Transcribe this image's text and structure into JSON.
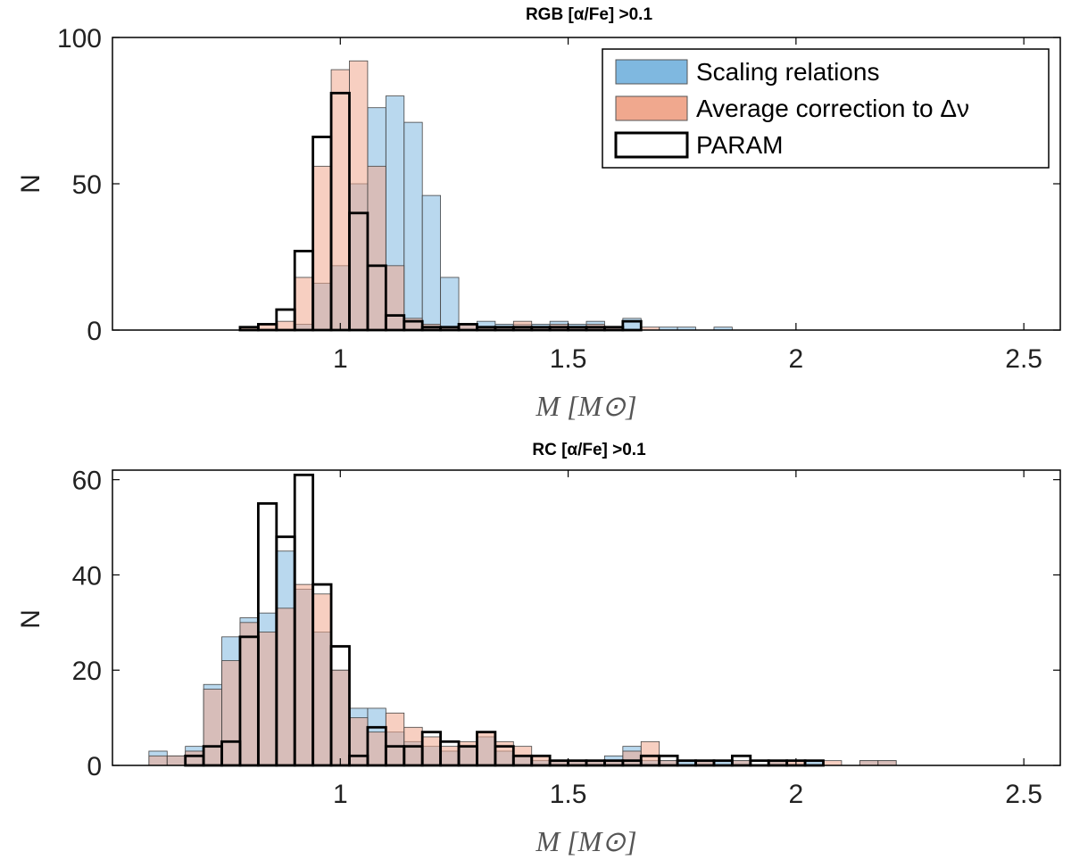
{
  "chart_data": [
    {
      "type": "bar",
      "title": "RGB [α/Fe] >0.1",
      "xlabel": "M  [M⊙]",
      "ylabel": "N",
      "xlim": [
        0.5,
        2.58
      ],
      "ylim": [
        0,
        100
      ],
      "xticks": [
        "1",
        "1.5",
        "2",
        "2.5"
      ],
      "yticks": [
        "0",
        "50",
        "100"
      ],
      "bin_width": 0.05,
      "legend": {
        "position": "top-right",
        "entries": [
          "Scaling relations",
          "Average correction to Δν",
          "PARAM"
        ]
      },
      "series": [
        {
          "name": "Scaling relations",
          "color": "#7fb8e0",
          "edges": [
            0.78,
            0.82,
            0.86,
            0.9,
            0.94,
            0.98,
            1.02,
            1.06,
            1.1,
            1.14,
            1.18,
            1.22,
            1.26,
            1.3,
            1.34,
            1.38,
            1.42,
            1.46,
            1.5,
            1.54,
            1.58,
            1.62,
            1.66,
            1.7,
            1.74,
            1.78,
            1.82,
            1.86
          ],
          "values": [
            0,
            0,
            0,
            2,
            16,
            22,
            50,
            76,
            80,
            71,
            46,
            18,
            2,
            3,
            2,
            2,
            2,
            3,
            2,
            3,
            1,
            4,
            0,
            1,
            1,
            0,
            1
          ]
        },
        {
          "name": "Average correction to Δν",
          "color": "#f0a88e",
          "edges": [
            0.78,
            0.82,
            0.86,
            0.9,
            0.94,
            0.98,
            1.02,
            1.06,
            1.1,
            1.14,
            1.18,
            1.22,
            1.26,
            1.3,
            1.34,
            1.38,
            1.42,
            1.46,
            1.5,
            1.54,
            1.58,
            1.62,
            1.66,
            1.7,
            1.74,
            1.78,
            1.82,
            1.86
          ],
          "values": [
            1,
            2,
            3,
            18,
            56,
            89,
            92,
            56,
            22,
            4,
            2,
            1,
            2,
            1,
            1,
            3,
            1,
            2,
            1,
            2,
            1,
            0,
            1,
            0,
            0,
            0,
            0
          ]
        },
        {
          "name": "PARAM",
          "color": "#000000",
          "edges": [
            0.58,
            0.78,
            0.82,
            0.86,
            0.9,
            0.94,
            0.98,
            1.02,
            1.06,
            1.1,
            1.14,
            1.18,
            1.22,
            1.26,
            1.3,
            1.34,
            1.38,
            1.42,
            1.46,
            1.5,
            1.54,
            1.58,
            1.62,
            1.66,
            1.7,
            1.74,
            1.78,
            1.82,
            1.86,
            2.48
          ],
          "values": [
            0,
            1,
            2,
            7,
            27,
            66,
            81,
            40,
            22,
            5,
            3,
            1,
            1,
            2,
            1,
            1,
            1,
            1,
            1,
            1,
            1,
            1,
            3,
            0,
            0,
            0,
            0,
            0,
            0
          ]
        }
      ]
    },
    {
      "type": "bar",
      "title": "RC [α/Fe] >0.1",
      "xlabel": "M  [M⊙]",
      "ylabel": "N",
      "xlim": [
        0.5,
        2.58
      ],
      "ylim": [
        0,
        62
      ],
      "xticks": [
        "1",
        "1.5",
        "2",
        "2.5"
      ],
      "yticks": [
        "0",
        "20",
        "40",
        "60"
      ],
      "bin_width": 0.04,
      "series": [
        {
          "name": "Scaling relations",
          "color": "#7fb8e0",
          "edges": [
            0.58,
            0.62,
            0.66,
            0.7,
            0.74,
            0.78,
            0.82,
            0.86,
            0.9,
            0.94,
            0.98,
            1.02,
            1.06,
            1.1,
            1.14,
            1.18,
            1.22,
            1.26,
            1.3,
            1.34,
            1.38,
            1.42,
            1.46,
            1.5,
            1.54,
            1.58,
            1.62,
            1.66,
            1.7,
            1.74,
            1.78,
            1.82,
            1.86,
            1.9,
            1.94,
            1.98,
            2.02,
            2.06,
            2.1,
            2.14,
            2.18,
            2.22
          ],
          "values": [
            3,
            2,
            4,
            17,
            27,
            31,
            32,
            45,
            37,
            28,
            20,
            12,
            12,
            7,
            5,
            4,
            3,
            4,
            6,
            3,
            2,
            1,
            1,
            1,
            1,
            2,
            4,
            1,
            1,
            1,
            1,
            1,
            1,
            0,
            1,
            0,
            1,
            0,
            0,
            1,
            1
          ]
        },
        {
          "name": "Average correction to Δν",
          "color": "#f0a88e",
          "edges": [
            0.58,
            0.62,
            0.66,
            0.7,
            0.74,
            0.78,
            0.82,
            0.86,
            0.9,
            0.94,
            0.98,
            1.02,
            1.06,
            1.1,
            1.14,
            1.18,
            1.22,
            1.26,
            1.3,
            1.34,
            1.38,
            1.42,
            1.46,
            1.5,
            1.54,
            1.58,
            1.62,
            1.66,
            1.7,
            1.74,
            1.78,
            1.82,
            1.86,
            1.9,
            1.94,
            1.98,
            2.02,
            2.06,
            2.1,
            2.14,
            2.18,
            2.22
          ],
          "values": [
            2,
            2,
            3,
            16,
            22,
            30,
            28,
            33,
            38,
            36,
            20,
            10,
            7,
            11,
            8,
            6,
            4,
            5,
            7,
            5,
            4,
            2,
            1,
            1,
            1,
            1,
            3,
            5,
            1,
            0,
            1,
            0,
            1,
            0,
            1,
            1,
            0,
            1,
            0,
            1,
            1
          ]
        },
        {
          "name": "PARAM",
          "color": "#000000",
          "edges": [
            0.58,
            0.62,
            0.66,
            0.7,
            0.74,
            0.78,
            0.82,
            0.86,
            0.9,
            0.94,
            0.98,
            1.02,
            1.06,
            1.1,
            1.14,
            1.18,
            1.22,
            1.26,
            1.3,
            1.34,
            1.38,
            1.42,
            1.46,
            1.5,
            1.54,
            1.58,
            1.62,
            1.66,
            1.7,
            1.74,
            1.78,
            1.82,
            1.86,
            1.9,
            1.94,
            1.98,
            2.02,
            2.06,
            2.1,
            2.14,
            2.48
          ],
          "values": [
            0,
            0,
            2,
            4,
            5,
            27,
            55,
            48,
            61,
            38,
            25,
            2,
            8,
            4,
            4,
            7,
            5,
            4,
            7,
            4,
            2,
            2,
            1,
            1,
            1,
            1,
            1,
            2,
            2,
            1,
            1,
            1,
            2,
            1,
            1,
            1,
            1,
            0,
            0,
            0
          ]
        }
      ]
    }
  ]
}
